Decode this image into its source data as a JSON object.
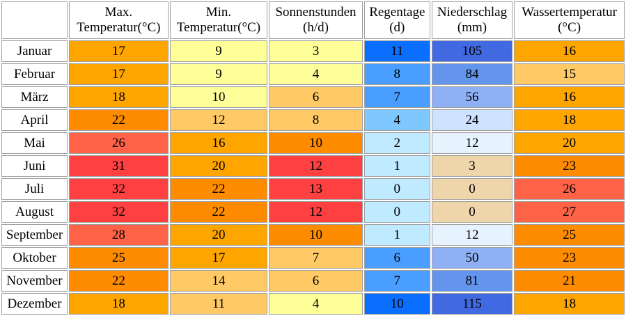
{
  "headers": {
    "corner": "",
    "tmax": [
      "Max.",
      "Temperatur(°C)"
    ],
    "tmin": [
      "Min.",
      "Temperatur(°C)"
    ],
    "sun": [
      "Sonnenstunden",
      "(h/d)"
    ],
    "rain": [
      "Regentage",
      "(d)"
    ],
    "prec": [
      "Niederschlag",
      "(mm)"
    ],
    "water": [
      "Wassertemperatur",
      "(°C)"
    ]
  },
  "rows": [
    {
      "month": "Januar",
      "tmax": "17",
      "tmin": "9",
      "sun": "3",
      "rain": "11",
      "prec": "105",
      "water": "16"
    },
    {
      "month": "Februar",
      "tmax": "17",
      "tmin": "9",
      "sun": "4",
      "rain": "8",
      "prec": "84",
      "water": "15"
    },
    {
      "month": "März",
      "tmax": "18",
      "tmin": "10",
      "sun": "6",
      "rain": "7",
      "prec": "56",
      "water": "16"
    },
    {
      "month": "April",
      "tmax": "22",
      "tmin": "12",
      "sun": "8",
      "rain": "4",
      "prec": "24",
      "water": "18"
    },
    {
      "month": "Mai",
      "tmax": "26",
      "tmin": "16",
      "sun": "10",
      "rain": "2",
      "prec": "12",
      "water": "20"
    },
    {
      "month": "Juni",
      "tmax": "31",
      "tmin": "20",
      "sun": "12",
      "rain": "1",
      "prec": "3",
      "water": "23"
    },
    {
      "month": "Juli",
      "tmax": "32",
      "tmin": "22",
      "sun": "13",
      "rain": "0",
      "prec": "0",
      "water": "26"
    },
    {
      "month": "August",
      "tmax": "32",
      "tmin": "22",
      "sun": "12",
      "rain": "0",
      "prec": "0",
      "water": "27"
    },
    {
      "month": "September",
      "tmax": "28",
      "tmin": "20",
      "sun": "10",
      "rain": "1",
      "prec": "12",
      "water": "25"
    },
    {
      "month": "Oktober",
      "tmax": "25",
      "tmin": "17",
      "sun": "7",
      "rain": "6",
      "prec": "50",
      "water": "23"
    },
    {
      "month": "November",
      "tmax": "22",
      "tmin": "14",
      "sun": "6",
      "rain": "7",
      "prec": "81",
      "water": "21"
    },
    {
      "month": "Dezember",
      "tmax": "18",
      "tmin": "11",
      "sun": "4",
      "rain": "10",
      "prec": "115",
      "water": "18"
    }
  ],
  "colors": {
    "tmax": [
      "#ffa500",
      "#ffa500",
      "#ffa500",
      "#ff8c00",
      "#ff6347",
      "#ff4040",
      "#ff4040",
      "#ff4040",
      "#ff6347",
      "#ff8c00",
      "#ff8c00",
      "#ffa500"
    ],
    "tmin": [
      "#ffff99",
      "#ffff99",
      "#ffff99",
      "#ffc966",
      "#ffa500",
      "#ffa500",
      "#ff8c00",
      "#ff8c00",
      "#ffa500",
      "#ffa500",
      "#ffc966",
      "#ffc966"
    ],
    "sun": [
      "#ffff99",
      "#ffff99",
      "#ffc966",
      "#ffc966",
      "#ff8c00",
      "#ff4040",
      "#ff4040",
      "#ff4040",
      "#ff8c00",
      "#ffc966",
      "#ffc966",
      "#ffff99"
    ],
    "rain": [
      "#0a6eff",
      "#4a9eff",
      "#4a9eff",
      "#7ec8ff",
      "#bfeaff",
      "#bfeaff",
      "#bfeaff",
      "#bfeaff",
      "#bfeaff",
      "#4a9eff",
      "#4a9eff",
      "#0a6eff"
    ],
    "prec": [
      "#4169e1",
      "#6495ed",
      "#8fb0f5",
      "#cde3ff",
      "#e6f3ff",
      "#eed6aa",
      "#eed6aa",
      "#eed6aa",
      "#e6f3ff",
      "#8fb0f5",
      "#6495ed",
      "#4169e1"
    ],
    "water": [
      "#ffa500",
      "#ffc966",
      "#ffa500",
      "#ffa500",
      "#ffa500",
      "#ff8c00",
      "#ff6347",
      "#ff6347",
      "#ff8c00",
      "#ff8c00",
      "#ff8c00",
      "#ffa500"
    ]
  }
}
